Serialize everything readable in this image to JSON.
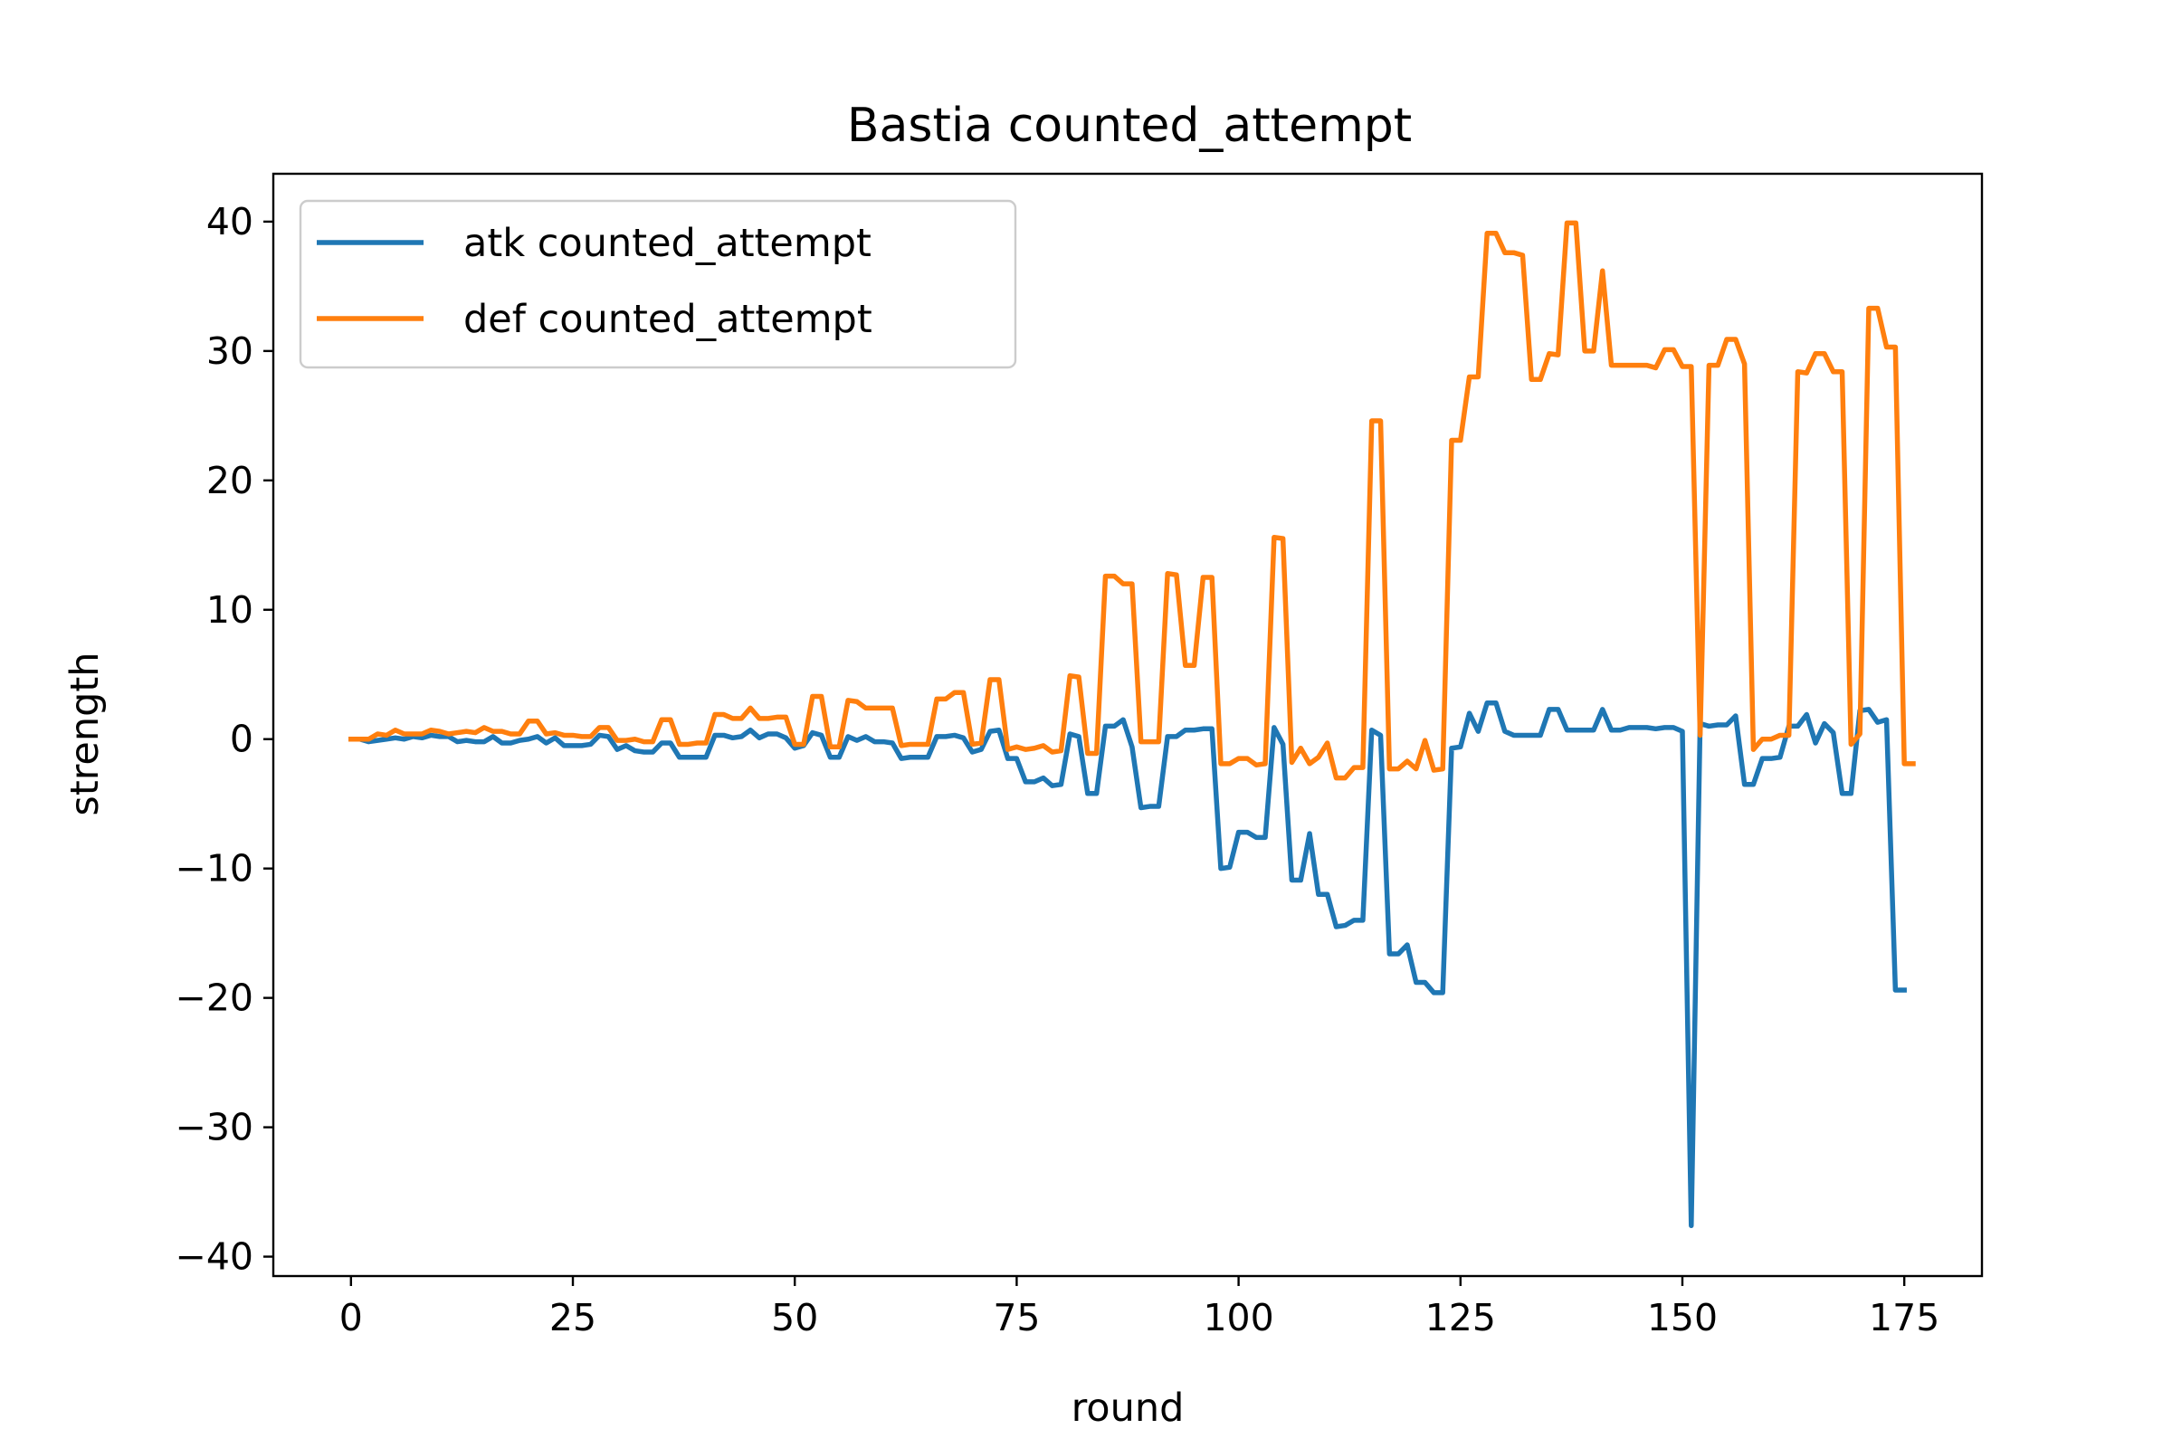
{
  "chart_data": {
    "type": "line",
    "title": "Bastia counted_attempt",
    "xlabel": "round",
    "ylabel": "strength",
    "xlim": [
      -8.75,
      183.75
    ],
    "ylim": [
      -41.5,
      43.7
    ],
    "xticks": [
      0,
      25,
      50,
      75,
      100,
      125,
      150,
      175
    ],
    "yticks": [
      -40,
      -30,
      -20,
      -10,
      0,
      10,
      20,
      30,
      40
    ],
    "grid": false,
    "legend_position": "upper-left",
    "series": [
      {
        "name": "atk counted_attempt",
        "color": "#1f77b4",
        "x_start": 0,
        "values": [
          0,
          0,
          -0.2,
          -0.1,
          0,
          0.1,
          0,
          0.2,
          0.1,
          0.3,
          0.2,
          0.2,
          -0.2,
          -0.1,
          -0.2,
          -0.2,
          0.2,
          -0.3,
          -0.3,
          -0.1,
          0,
          0.2,
          -0.3,
          0.1,
          -0.5,
          -0.5,
          -0.5,
          -0.4,
          0.3,
          0.2,
          -0.8,
          -0.5,
          -0.9,
          -1.0,
          -1.0,
          -0.3,
          -0.3,
          -1.4,
          -1.4,
          -1.4,
          -1.4,
          0.3,
          0.3,
          0.1,
          0.2,
          0.7,
          0.1,
          0.4,
          0.4,
          0.1,
          -0.7,
          -0.5,
          0.5,
          0.3,
          -1.4,
          -1.4,
          0.2,
          -0.1,
          0.2,
          -0.2,
          -0.2,
          -0.3,
          -1.5,
          -1.4,
          -1.4,
          -1.4,
          0.2,
          0.2,
          0.3,
          0.1,
          -1.0,
          -0.8,
          0.6,
          0.7,
          -1.5,
          -1.5,
          -3.3,
          -3.3,
          -3.0,
          -3.6,
          -3.5,
          0.4,
          0.2,
          -4.2,
          -4.2,
          1.0,
          1.0,
          1.5,
          -0.6,
          -5.3,
          -5.2,
          -5.2,
          0.2,
          0.2,
          0.7,
          0.7,
          0.8,
          0.8,
          -10.0,
          -9.9,
          -7.2,
          -7.2,
          -7.6,
          -7.6,
          0.9,
          -0.4,
          -10.9,
          -10.9,
          -7.3,
          -12.0,
          -12.0,
          -14.5,
          -14.4,
          -14.0,
          -14.0,
          0.7,
          0.3,
          -16.6,
          -16.6,
          -15.9,
          -18.8,
          -18.8,
          -19.6,
          -19.6,
          -0.7,
          -0.6,
          2.0,
          0.6,
          2.8,
          2.8,
          0.6,
          0.3,
          0.3,
          0.3,
          0.3,
          2.3,
          2.3,
          0.7,
          0.7,
          0.7,
          0.7,
          2.3,
          0.7,
          0.7,
          0.9,
          0.9,
          0.9,
          0.8,
          0.9,
          0.9,
          0.6,
          -37.6,
          1.2,
          1.0,
          1.1,
          1.1,
          1.8,
          -3.5,
          -3.5,
          -1.5,
          -1.5,
          -1.4,
          1.0,
          1.0,
          1.9,
          -0.3,
          1.2,
          0.5,
          -4.2,
          -4.2,
          2.2,
          2.3,
          1.3,
          1.5,
          -19.4,
          -19.4
        ]
      },
      {
        "name": "def counted_attempt",
        "color": "#ff7f0e",
        "x_start": 0,
        "values": [
          0,
          0,
          0,
          0.4,
          0.3,
          0.7,
          0.4,
          0.4,
          0.4,
          0.7,
          0.6,
          0.4,
          0.5,
          0.6,
          0.5,
          0.9,
          0.6,
          0.6,
          0.4,
          0.4,
          1.4,
          1.4,
          0.4,
          0.5,
          0.3,
          0.3,
          0.2,
          0.2,
          0.9,
          0.9,
          -0.1,
          -0.1,
          0,
          -0.2,
          -0.2,
          1.5,
          1.5,
          -0.4,
          -0.4,
          -0.3,
          -0.3,
          1.9,
          1.9,
          1.6,
          1.6,
          2.4,
          1.6,
          1.6,
          1.7,
          1.7,
          -0.4,
          -0.4,
          3.3,
          3.3,
          -0.6,
          -0.6,
          3.0,
          2.9,
          2.4,
          2.4,
          2.4,
          2.4,
          -0.5,
          -0.4,
          -0.4,
          -0.4,
          3.1,
          3.1,
          3.6,
          3.6,
          -0.4,
          -0.3,
          4.6,
          4.6,
          -0.8,
          -0.6,
          -0.8,
          -0.7,
          -0.5,
          -1.0,
          -0.9,
          4.9,
          4.8,
          -1.1,
          -1.1,
          12.6,
          12.6,
          12.0,
          12.0,
          -0.2,
          -0.2,
          -0.2,
          12.8,
          12.7,
          5.7,
          5.7,
          12.5,
          12.5,
          -1.9,
          -1.9,
          -1.5,
          -1.5,
          -2.0,
          -1.9,
          15.6,
          15.5,
          -1.8,
          -0.7,
          -1.9,
          -1.4,
          -0.3,
          -3.0,
          -3.0,
          -2.2,
          -2.2,
          24.6,
          24.6,
          -2.3,
          -2.3,
          -1.7,
          -2.3,
          -0.1,
          -2.4,
          -2.3,
          23.1,
          23.1,
          28.0,
          28.0,
          39.1,
          39.1,
          37.6,
          37.6,
          37.4,
          27.8,
          27.8,
          29.8,
          29.7,
          39.9,
          39.9,
          30.0,
          30.0,
          36.2,
          28.9,
          28.9,
          28.9,
          28.9,
          28.9,
          28.7,
          30.1,
          30.1,
          28.8,
          28.8,
          0.3,
          28.9,
          28.9,
          30.9,
          30.9,
          29.0,
          -0.8,
          0,
          0,
          0.3,
          0.3,
          28.4,
          28.3,
          29.8,
          29.8,
          28.4,
          28.4,
          -0.4,
          0.4,
          33.3,
          33.3,
          30.3,
          30.3,
          -1.9,
          -1.9
        ]
      }
    ]
  }
}
